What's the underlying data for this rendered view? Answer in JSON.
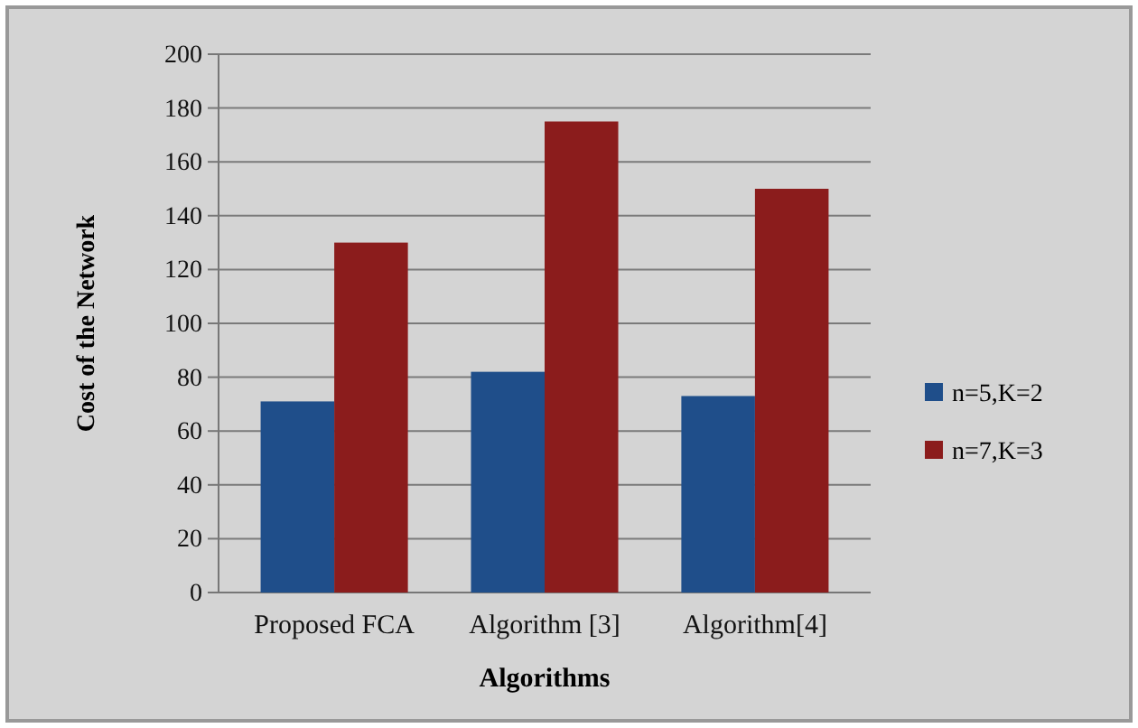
{
  "chart_data": {
    "type": "bar",
    "xlabel": "Algorithms",
    "ylabel": "Cost  of the Network",
    "categories": [
      "Proposed FCA",
      "Algorithm [3]",
      "Algorithm[4]"
    ],
    "series": [
      {
        "name": "n=5,K=2",
        "color": "#1f4e8a",
        "values": [
          71,
          82,
          73
        ]
      },
      {
        "name": "n=7,K=3",
        "color": "#8b1c1c",
        "values": [
          130,
          175,
          150
        ]
      }
    ],
    "ylim": [
      0,
      200
    ],
    "yticks": [
      0,
      20,
      40,
      60,
      80,
      100,
      120,
      140,
      160,
      180,
      200
    ],
    "grid": "y",
    "legend": "right"
  }
}
